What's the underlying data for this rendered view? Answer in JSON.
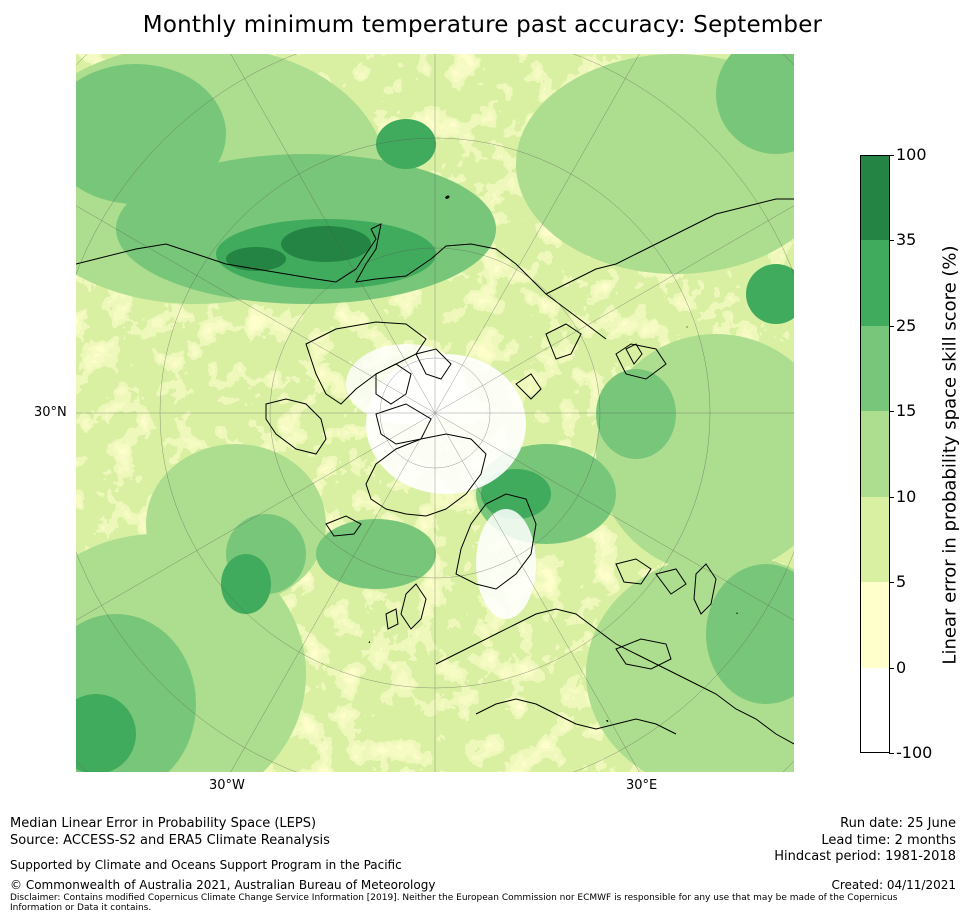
{
  "title": "Monthly minimum temperature past accuracy: September",
  "map": {
    "projection": "north-polar-stereographic",
    "lat_label_30n": "30°N",
    "lon_label_30w": "30°W",
    "lon_label_30e": "30°E",
    "land_outline_color": "#000000"
  },
  "colorbar": {
    "label": "Linear error in probability space skill score (%)",
    "ticks": [
      "100",
      "35",
      "25",
      "15",
      "10",
      "5",
      "0",
      "-100"
    ],
    "bins": [
      {
        "range": "35 to 100",
        "color": "#238443"
      },
      {
        "range": "25 to 35",
        "color": "#41ab5d"
      },
      {
        "range": "15 to 25",
        "color": "#78c679"
      },
      {
        "range": "10 to 15",
        "color": "#addd8e"
      },
      {
        "range": "5 to 10",
        "color": "#d9f0a3"
      },
      {
        "range": "0 to 5",
        "color": "#ffffcc"
      },
      {
        "range": "-100 to 0",
        "color": "#ffffff"
      }
    ]
  },
  "footer": {
    "line1": "Median Linear Error in Probability Space (LEPS)",
    "line2": "Source: ACCESS-S2 and ERA5 Climate Reanalysis",
    "support": "Supported by Climate and Oceans Support Program in the Pacific",
    "copyright": "© Commonwealth of Australia 2021, Australian Bureau of Meteorology",
    "disclaimer": "Disclaimer: Contains modified Copernicus Climate Change Service Information [2019]. Neither the European Commission nor ECMWF is responsible for any use that may be made of the Copernicus Information or Data it contains.",
    "run_date": "Run date: 25 June",
    "lead_time": "Lead time: 2 months",
    "hindcast": "Hindcast period: 1981-2018",
    "created": "Created: 04/11/2021"
  }
}
